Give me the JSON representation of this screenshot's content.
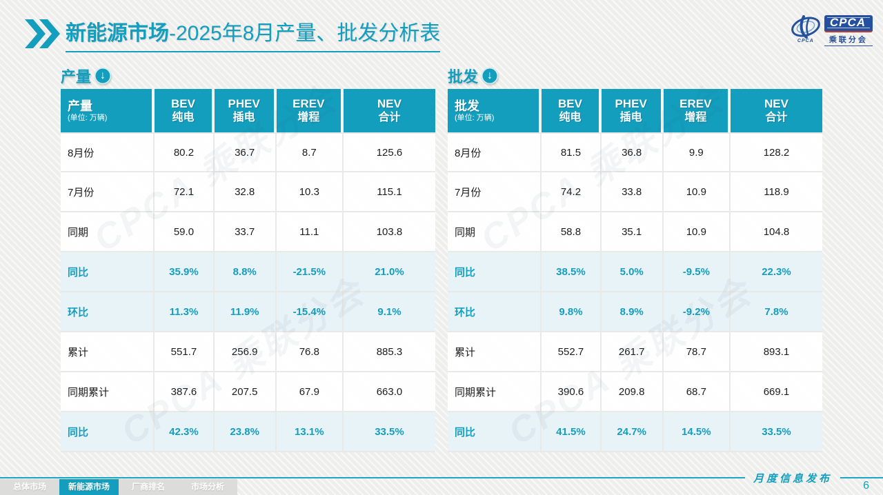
{
  "accent_color": "#149EBE",
  "highlight_row_bg": "#E7F3F8",
  "title": {
    "main": "新能源市场",
    "rest": "-2025年8月产量、批发分析表"
  },
  "logo": {
    "name": "CPCA",
    "sub": "乘联分会",
    "emblem_caption": "CPCA"
  },
  "watermark_text": "CPCA 乘联分会",
  "tables": [
    {
      "section_label": "产量",
      "corner_label": "产量",
      "unit_label": "(单位: 万辆)",
      "columns": [
        {
          "en": "BEV",
          "zh": "纯电"
        },
        {
          "en": "PHEV",
          "zh": "插电"
        },
        {
          "en": "EREV",
          "zh": "增程"
        },
        {
          "en": "NEV",
          "zh": "合计"
        }
      ],
      "rows": [
        {
          "label": "8月份",
          "values": [
            "80.2",
            "36.7",
            "8.7",
            "125.6"
          ],
          "highlight": false
        },
        {
          "label": "7月份",
          "values": [
            "72.1",
            "32.8",
            "10.3",
            "115.1"
          ],
          "highlight": false
        },
        {
          "label": "同期",
          "values": [
            "59.0",
            "33.7",
            "11.1",
            "103.8"
          ],
          "highlight": false
        },
        {
          "label": "同比",
          "values": [
            "35.9%",
            "8.8%",
            "-21.5%",
            "21.0%"
          ],
          "highlight": true
        },
        {
          "label": "环比",
          "values": [
            "11.3%",
            "11.9%",
            "-15.4%",
            "9.1%"
          ],
          "highlight": true
        },
        {
          "label": "累计",
          "values": [
            "551.7",
            "256.9",
            "76.8",
            "885.3"
          ],
          "highlight": false
        },
        {
          "label": "同期累计",
          "values": [
            "387.6",
            "207.5",
            "67.9",
            "663.0"
          ],
          "highlight": false
        },
        {
          "label": "同比",
          "values": [
            "42.3%",
            "23.8%",
            "13.1%",
            "33.5%"
          ],
          "highlight": true
        }
      ]
    },
    {
      "section_label": "批发",
      "corner_label": "批发",
      "unit_label": "(单位: 万辆)",
      "columns": [
        {
          "en": "BEV",
          "zh": "纯电"
        },
        {
          "en": "PHEV",
          "zh": "插电"
        },
        {
          "en": "EREV",
          "zh": "增程"
        },
        {
          "en": "NEV",
          "zh": "合计"
        }
      ],
      "rows": [
        {
          "label": "8月份",
          "values": [
            "81.5",
            "36.8",
            "9.9",
            "128.2"
          ],
          "highlight": false
        },
        {
          "label": "7月份",
          "values": [
            "74.2",
            "33.8",
            "10.9",
            "118.9"
          ],
          "highlight": false
        },
        {
          "label": "同期",
          "values": [
            "58.8",
            "35.1",
            "10.9",
            "104.8"
          ],
          "highlight": false
        },
        {
          "label": "同比",
          "values": [
            "38.5%",
            "5.0%",
            "-9.5%",
            "22.3%"
          ],
          "highlight": true
        },
        {
          "label": "环比",
          "values": [
            "9.8%",
            "8.9%",
            "-9.2%",
            "7.8%"
          ],
          "highlight": true
        },
        {
          "label": "累计",
          "values": [
            "552.7",
            "261.7",
            "78.7",
            "893.1"
          ],
          "highlight": false
        },
        {
          "label": "同期累计",
          "values": [
            "390.6",
            "209.8",
            "68.7",
            "669.1"
          ],
          "highlight": false
        },
        {
          "label": "同比",
          "values": [
            "41.5%",
            "24.7%",
            "14.5%",
            "33.5%"
          ],
          "highlight": true
        }
      ]
    }
  ],
  "footer": {
    "tabs": [
      {
        "label": "总体市场",
        "active": false
      },
      {
        "label": "新能源市场",
        "active": true
      },
      {
        "label": "厂商排名",
        "active": false
      },
      {
        "label": "市场分析",
        "active": false
      }
    ],
    "release_label": "月度信息发布",
    "page_number": "6"
  }
}
